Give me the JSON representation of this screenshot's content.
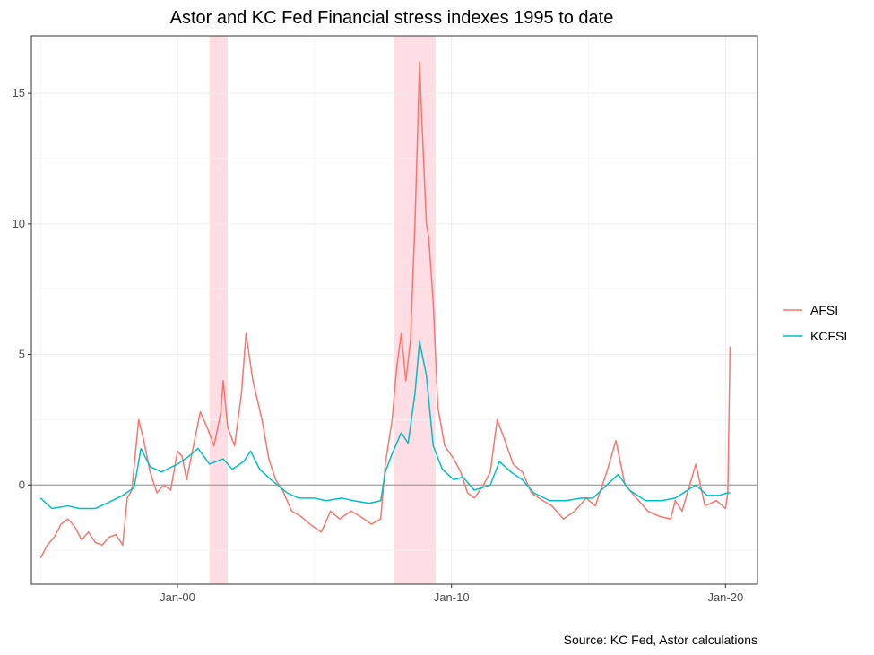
{
  "chart_data": {
    "type": "line",
    "title": "Astor and KC Fed Financial stress indexes 1995 to date",
    "caption": "Source: KC Fed, Astor calculations",
    "xlabel": "",
    "ylabel": "",
    "x_range": [
      "1994-09",
      "2021-03"
    ],
    "ylim": [
      -3.8,
      17.2
    ],
    "x_ticks": [
      {
        "label": "Jan-00",
        "date": "2000-01"
      },
      {
        "label": "Jan-10",
        "date": "2010-01"
      },
      {
        "label": "Jan-20",
        "date": "2020-01"
      }
    ],
    "y_ticks": [
      0,
      5,
      10,
      15
    ],
    "grid": true,
    "zero_line": true,
    "legend_position": "right",
    "shaded_periods": [
      {
        "start": "2001-03",
        "end": "2001-11"
      },
      {
        "start": "2007-12",
        "end": "2009-06"
      }
    ],
    "series": [
      {
        "name": "AFSI",
        "color": "#F8766D",
        "points": [
          [
            "1995-01",
            -2.8
          ],
          [
            "1995-04",
            -2.3
          ],
          [
            "1995-07",
            -2.0
          ],
          [
            "1995-10",
            -1.5
          ],
          [
            "1996-01",
            -1.3
          ],
          [
            "1996-04",
            -1.6
          ],
          [
            "1996-07",
            -2.1
          ],
          [
            "1996-10",
            -1.8
          ],
          [
            "1997-01",
            -2.2
          ],
          [
            "1997-04",
            -2.3
          ],
          [
            "1997-07",
            -2.0
          ],
          [
            "1997-10",
            -1.9
          ],
          [
            "1998-01",
            -2.3
          ],
          [
            "1998-03",
            -0.5
          ],
          [
            "1998-05",
            -0.2
          ],
          [
            "1998-08",
            2.5
          ],
          [
            "1998-10",
            1.8
          ],
          [
            "1999-01",
            0.5
          ],
          [
            "1999-04",
            -0.3
          ],
          [
            "1999-07",
            0.0
          ],
          [
            "1999-10",
            -0.2
          ],
          [
            "2000-01",
            1.3
          ],
          [
            "2000-03",
            1.1
          ],
          [
            "2000-05",
            0.2
          ],
          [
            "2000-08",
            1.5
          ],
          [
            "2000-11",
            2.8
          ],
          [
            "2001-02",
            2.2
          ],
          [
            "2001-05",
            1.5
          ],
          [
            "2001-08",
            2.8
          ],
          [
            "2001-09",
            4.0
          ],
          [
            "2001-11",
            2.2
          ],
          [
            "2002-02",
            1.5
          ],
          [
            "2002-05",
            3.5
          ],
          [
            "2002-07",
            5.8
          ],
          [
            "2002-10",
            4.0
          ],
          [
            "2003-02",
            2.5
          ],
          [
            "2003-05",
            1.0
          ],
          [
            "2003-08",
            0.2
          ],
          [
            "2003-11",
            -0.2
          ],
          [
            "2004-03",
            -1.0
          ],
          [
            "2004-07",
            -1.2
          ],
          [
            "2004-11",
            -1.5
          ],
          [
            "2005-04",
            -1.8
          ],
          [
            "2005-08",
            -1.0
          ],
          [
            "2005-12",
            -1.3
          ],
          [
            "2006-05",
            -1.0
          ],
          [
            "2006-09",
            -1.2
          ],
          [
            "2007-02",
            -1.5
          ],
          [
            "2007-06",
            -1.3
          ],
          [
            "2007-08",
            0.8
          ],
          [
            "2007-11",
            2.5
          ],
          [
            "2008-01",
            4.5
          ],
          [
            "2008-03",
            5.8
          ],
          [
            "2008-05",
            4.0
          ],
          [
            "2008-07",
            5.5
          ],
          [
            "2008-09",
            10.0
          ],
          [
            "2008-10",
            13.0
          ],
          [
            "2008-11",
            16.2
          ],
          [
            "2008-12",
            14.0
          ],
          [
            "2009-02",
            10.0
          ],
          [
            "2009-03",
            9.5
          ],
          [
            "2009-05",
            7.0
          ],
          [
            "2009-07",
            3.0
          ],
          [
            "2009-10",
            1.5
          ],
          [
            "2010-02",
            1.0
          ],
          [
            "2010-05",
            0.5
          ],
          [
            "2010-08",
            -0.3
          ],
          [
            "2010-11",
            -0.5
          ],
          [
            "2011-03",
            0.0
          ],
          [
            "2011-06",
            0.5
          ],
          [
            "2011-09",
            2.5
          ],
          [
            "2011-12",
            1.8
          ],
          [
            "2012-04",
            0.8
          ],
          [
            "2012-08",
            0.5
          ],
          [
            "2012-12",
            -0.3
          ],
          [
            "2013-05",
            -0.6
          ],
          [
            "2013-09",
            -0.8
          ],
          [
            "2014-02",
            -1.3
          ],
          [
            "2014-07",
            -1.0
          ],
          [
            "2014-12",
            -0.5
          ],
          [
            "2015-04",
            -0.8
          ],
          [
            "2015-09",
            0.5
          ],
          [
            "2016-01",
            1.7
          ],
          [
            "2016-05",
            0.0
          ],
          [
            "2016-10",
            -0.5
          ],
          [
            "2017-03",
            -1.0
          ],
          [
            "2017-08",
            -1.2
          ],
          [
            "2018-01",
            -1.3
          ],
          [
            "2018-03",
            -0.6
          ],
          [
            "2018-06",
            -1.0
          ],
          [
            "2018-12",
            0.8
          ],
          [
            "2019-04",
            -0.8
          ],
          [
            "2019-09",
            -0.6
          ],
          [
            "2020-01",
            -0.9
          ],
          [
            "2020-02",
            -0.3
          ],
          [
            "2020-03",
            5.3
          ]
        ]
      },
      {
        "name": "KCFSI",
        "color": "#00BFC4",
        "points": [
          [
            "1995-01",
            -0.5
          ],
          [
            "1995-06",
            -0.9
          ],
          [
            "1996-01",
            -0.8
          ],
          [
            "1996-06",
            -0.9
          ],
          [
            "1997-01",
            -0.9
          ],
          [
            "1997-06",
            -0.7
          ],
          [
            "1998-01",
            -0.4
          ],
          [
            "1998-06",
            -0.1
          ],
          [
            "1998-09",
            1.4
          ],
          [
            "1999-01",
            0.7
          ],
          [
            "1999-06",
            0.5
          ],
          [
            "2000-01",
            0.8
          ],
          [
            "2000-06",
            1.1
          ],
          [
            "2000-10",
            1.4
          ],
          [
            "2001-03",
            0.8
          ],
          [
            "2001-09",
            1.0
          ],
          [
            "2002-01",
            0.6
          ],
          [
            "2002-06",
            0.9
          ],
          [
            "2002-09",
            1.3
          ],
          [
            "2003-01",
            0.6
          ],
          [
            "2003-06",
            0.2
          ],
          [
            "2004-01",
            -0.3
          ],
          [
            "2004-06",
            -0.5
          ],
          [
            "2005-01",
            -0.5
          ],
          [
            "2005-06",
            -0.6
          ],
          [
            "2006-01",
            -0.5
          ],
          [
            "2006-06",
            -0.6
          ],
          [
            "2007-01",
            -0.7
          ],
          [
            "2007-06",
            -0.6
          ],
          [
            "2007-08",
            0.5
          ],
          [
            "2007-11",
            1.2
          ],
          [
            "2008-03",
            2.0
          ],
          [
            "2008-06",
            1.6
          ],
          [
            "2008-09",
            3.5
          ],
          [
            "2008-11",
            5.5
          ],
          [
            "2009-02",
            4.2
          ],
          [
            "2009-05",
            1.5
          ],
          [
            "2009-09",
            0.6
          ],
          [
            "2010-02",
            0.2
          ],
          [
            "2010-06",
            0.3
          ],
          [
            "2010-11",
            -0.2
          ],
          [
            "2011-06",
            0.0
          ],
          [
            "2011-10",
            0.9
          ],
          [
            "2012-03",
            0.5
          ],
          [
            "2012-08",
            0.2
          ],
          [
            "2013-01",
            -0.3
          ],
          [
            "2013-08",
            -0.6
          ],
          [
            "2014-03",
            -0.6
          ],
          [
            "2014-10",
            -0.5
          ],
          [
            "2015-03",
            -0.5
          ],
          [
            "2015-09",
            0.0
          ],
          [
            "2016-02",
            0.4
          ],
          [
            "2016-07",
            -0.2
          ],
          [
            "2017-02",
            -0.6
          ],
          [
            "2017-09",
            -0.6
          ],
          [
            "2018-03",
            -0.5
          ],
          [
            "2018-12",
            0.0
          ],
          [
            "2019-05",
            -0.4
          ],
          [
            "2019-10",
            -0.4
          ],
          [
            "2020-02",
            -0.3
          ],
          [
            "2020-03",
            -0.3
          ]
        ]
      }
    ]
  }
}
